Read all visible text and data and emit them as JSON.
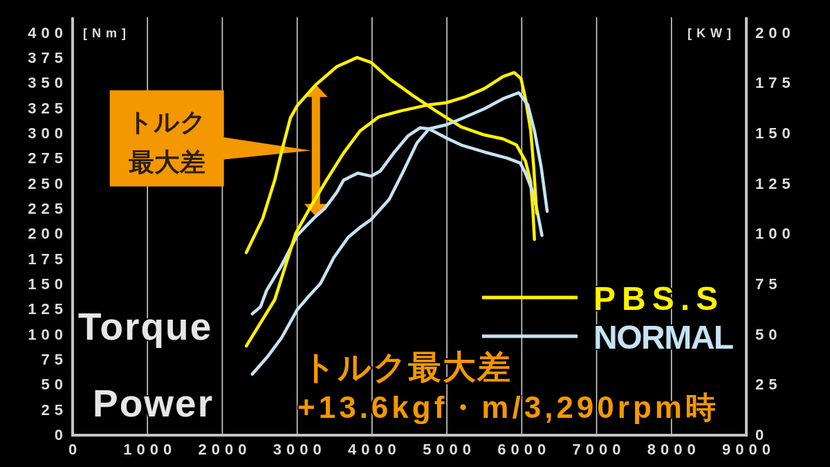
{
  "chart_data": {
    "type": "line",
    "xlim": [
      0,
      9000
    ],
    "xticks": [
      0,
      1000,
      2000,
      3000,
      4000,
      5000,
      6000,
      7000,
      8000,
      9000
    ],
    "ylim": [
      0,
      415
    ],
    "yticks": [
      0,
      25,
      50,
      75,
      100,
      125,
      150,
      175,
      200,
      225,
      250,
      275,
      300,
      325,
      350,
      375,
      400
    ],
    "y2lim": [
      0,
      207.5
    ],
    "y2ticks": [
      0,
      25,
      50,
      75,
      100,
      125,
      150,
      175,
      200
    ],
    "ylabel": "[Nm]",
    "y2label": "[KW]",
    "grid": "x",
    "legend": "bottom right",
    "series": [
      {
        "name": "PBS.S",
        "color": "#fff200",
        "x": [
          2320,
          2540,
          2700,
          2790,
          2910,
          3000,
          3250,
          3530,
          3800,
          3990,
          4230,
          4550,
          4850,
          5190,
          5500,
          5750,
          5930,
          6050,
          6120,
          6150,
          6170
        ],
        "values": [
          181,
          215,
          253,
          281,
          315,
          327,
          348,
          366,
          375,
          370,
          354,
          337,
          322,
          306,
          298,
          294,
          288,
          272,
          251,
          221,
          194
        ]
      },
      {
        "name": "NORMAL",
        "color": "#c6e3f4",
        "x": [
          2400,
          2510,
          2590,
          2790,
          3000,
          3220,
          3370,
          3530,
          3620,
          3810,
          3990,
          4110,
          4300,
          4480,
          4640,
          4760,
          4990,
          5190,
          5500,
          5800,
          5980,
          6050,
          6150,
          6210,
          6270
        ],
        "values": [
          120,
          127,
          143,
          168,
          198,
          215,
          225,
          241,
          253,
          260,
          257,
          262,
          281,
          297,
          305,
          304,
          295,
          288,
          281,
          275,
          270,
          260,
          241,
          221,
          198
        ]
      },
      {
        "color": "#fff200",
        "axis": "y2",
        "x": [
          2320,
          2700,
          2980,
          3160,
          3400,
          3620,
          3840,
          4090,
          4390,
          4760,
          4990,
          5250,
          5500,
          5750,
          5900,
          5990,
          6050,
          6120,
          6160,
          6200
        ],
        "values": [
          44,
          67,
          100,
          112,
          127,
          140,
          151,
          158,
          161,
          164,
          165,
          168,
          172,
          178,
          180,
          177,
          167,
          151,
          133,
          110
        ]
      },
      {
        "color": "#c6e3f4",
        "axis": "y2",
        "x": [
          2400,
          2610,
          2790,
          3000,
          3160,
          3310,
          3490,
          3680,
          3840,
          3990,
          4110,
          4230,
          4420,
          4600,
          4760,
          4990,
          5190,
          5500,
          5750,
          5960,
          6080,
          6170,
          6260,
          6340
        ],
        "values": [
          30,
          39,
          48,
          62,
          69,
          75,
          88,
          98,
          103,
          107,
          112,
          117,
          131,
          145,
          152,
          154,
          157,
          162,
          167,
          170,
          164,
          151,
          133,
          111
        ]
      }
    ],
    "annotations": [
      "Torque",
      "Power",
      "トルク最大差",
      "トルク最大差",
      "+13.6kgf・m/3,290rpm時"
    ]
  }
}
